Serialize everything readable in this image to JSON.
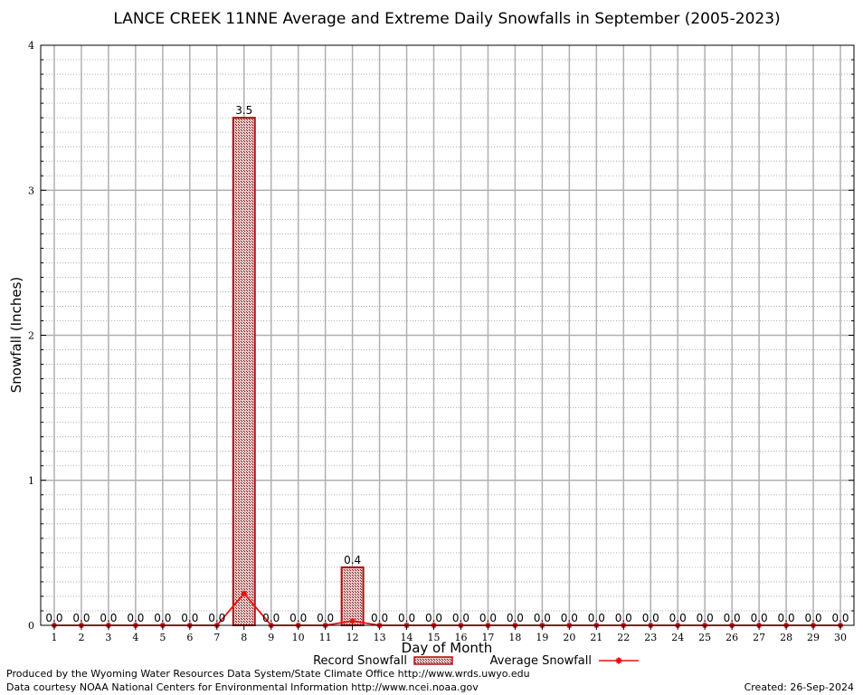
{
  "chart_data": {
    "type": "bar",
    "title": "LANCE CREEK 11NNE Average and Extreme Daily Snowfalls in September (2005-2023)",
    "xlabel": "Day of Month",
    "ylabel": "Snowfall (Inches)",
    "ylim": [
      0,
      4
    ],
    "yticks": [
      "0",
      "1",
      "2",
      "3",
      "4"
    ],
    "categories": [
      "1",
      "2",
      "3",
      "4",
      "5",
      "6",
      "7",
      "8",
      "9",
      "10",
      "11",
      "12",
      "13",
      "14",
      "15",
      "16",
      "17",
      "18",
      "19",
      "20",
      "21",
      "22",
      "23",
      "24",
      "25",
      "26",
      "27",
      "28",
      "29",
      "30"
    ],
    "series": [
      {
        "name": "Record Snowfall",
        "kind": "bar",
        "values": [
          0,
          0,
          0,
          0,
          0,
          0,
          0,
          3.5,
          0,
          0,
          0,
          0.4,
          0,
          0,
          0,
          0,
          0,
          0,
          0,
          0,
          0,
          0,
          0,
          0,
          0,
          0,
          0,
          0,
          0,
          0
        ],
        "labels": [
          "0.0",
          "0.0",
          "0.0",
          "0.0",
          "0.0",
          "0.0",
          "0.0",
          "3.5",
          "0.0",
          "0.0",
          "0.0",
          "0.4",
          "0.0",
          "0.0",
          "0.0",
          "0.0",
          "0.0",
          "0.0",
          "0.0",
          "0.0",
          "0.0",
          "0.0",
          "0.0",
          "0.0",
          "0.0",
          "0.0",
          "0.0",
          "0.0",
          "0.0",
          "0.0"
        ],
        "color": "#b01010"
      },
      {
        "name": "Average Snowfall",
        "kind": "line",
        "values": [
          0,
          0,
          0,
          0,
          0,
          0,
          0,
          0.22,
          0,
          0,
          0,
          0.03,
          0,
          0,
          0,
          0,
          0,
          0,
          0,
          0,
          0,
          0,
          0,
          0,
          0,
          0,
          0,
          0,
          0,
          0
        ],
        "color": "#e81010"
      }
    ],
    "grid": true,
    "legend": "bottom-center"
  },
  "footer": {
    "produced_by": "Produced by the Wyoming Water Resources Data System/State Climate Office http://www.wrds.uwyo.edu",
    "courtesy": "Data courtesy NOAA National Centers for Environmental Information http://www.ncei.noaa.gov",
    "created": "Created:  26-Sep-2024"
  }
}
